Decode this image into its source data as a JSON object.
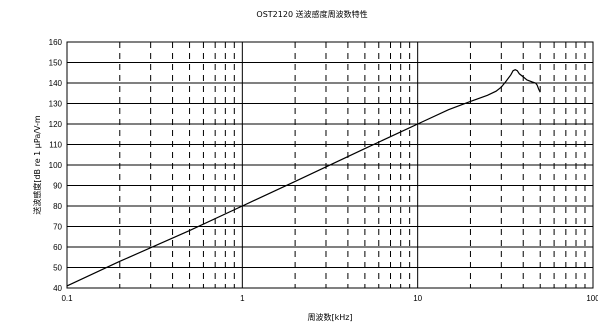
{
  "chart_data": {
    "type": "line",
    "title": "OST2120 送波感度周波数特性",
    "xlabel": "周波数[kHz]",
    "ylabel": "送波感度[dB re 1 μPa/V-m",
    "x_scale": "log",
    "xlim": [
      0.1,
      100
    ],
    "ylim": [
      40,
      160
    ],
    "x_ticks": [
      0.1,
      1,
      10,
      100
    ],
    "x_tick_labels": [
      "0.1",
      "1",
      "10",
      "100"
    ],
    "y_ticks": [
      40,
      50,
      60,
      70,
      80,
      90,
      100,
      110,
      120,
      130,
      140,
      150,
      160
    ],
    "y_tick_labels": [
      "40",
      "50",
      "60",
      "70",
      "80",
      "90",
      "100",
      "110",
      "120",
      "130",
      "140",
      "150",
      "160"
    ],
    "grid": {
      "major": "solid",
      "minor": "dashed",
      "y": "solid"
    },
    "legend": "none",
    "series": [
      {
        "x": [
          0.1,
          0.2,
          0.5,
          1,
          2,
          5,
          10,
          15,
          20,
          25,
          28,
          30,
          32,
          34,
          35,
          36,
          37,
          38,
          40,
          42,
          45,
          47,
          48,
          49,
          50
        ],
        "y": [
          41,
          53,
          68,
          80,
          92,
          108,
          120,
          127,
          131,
          134,
          136,
          138,
          141,
          144,
          146,
          146.5,
          146,
          144.5,
          143,
          141.5,
          140.5,
          140,
          139,
          137,
          135.5
        ]
      }
    ]
  }
}
